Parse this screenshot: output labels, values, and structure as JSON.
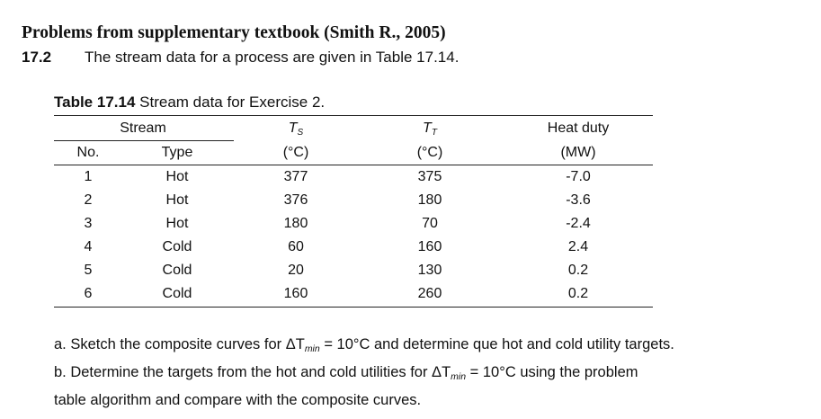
{
  "heading": "Problems from supplementary textbook (Smith R., 2005)",
  "problem": {
    "number": "17.2",
    "text": "The stream data for a process are given in Table 17.14."
  },
  "caption": {
    "label": "Table 17.14",
    "text": "Stream data for Exercise 2."
  },
  "table": {
    "group_header": "Stream",
    "headers": {
      "no": "No.",
      "type": "Type",
      "ts_symbol": "T",
      "ts_sub": "S",
      "ts_unit": "(°C)",
      "tt_symbol": "T",
      "tt_sub": "T",
      "tt_unit": "(°C)",
      "duty_label": "Heat duty",
      "duty_unit": "(MW)"
    },
    "rows": [
      {
        "no": "1",
        "type": "Hot",
        "ts": "377",
        "tt": "375",
        "duty": "-7.0"
      },
      {
        "no": "2",
        "type": "Hot",
        "ts": "376",
        "tt": "180",
        "duty": "-3.6"
      },
      {
        "no": "3",
        "type": "Hot",
        "ts": "180",
        "tt": "70",
        "duty": "-2.4"
      },
      {
        "no": "4",
        "type": "Cold",
        "ts": "60",
        "tt": "160",
        "duty": "2.4"
      },
      {
        "no": "5",
        "type": "Cold",
        "ts": "20",
        "tt": "130",
        "duty": "0.2"
      },
      {
        "no": "6",
        "type": "Cold",
        "ts": "160",
        "tt": "260",
        "duty": "0.2"
      }
    ]
  },
  "questions": {
    "a": {
      "prefix": "a. Sketch the composite curves for ΔT",
      "sub": "min",
      "suffix": " = 10°C and determine que hot and cold utility targets."
    },
    "b": {
      "prefix": "b. Determine the targets from the hot and cold utilities for ΔT",
      "sub": "min",
      "suffix": " = 10°C using the problem",
      "line2": "table algorithm and compare with the composite curves."
    }
  }
}
